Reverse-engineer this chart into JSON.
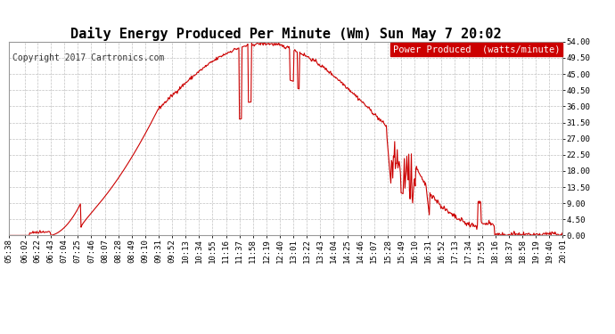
{
  "title": "Daily Energy Produced Per Minute (Wm) Sun May 7 20:02",
  "copyright_text": "Copyright 2017 Cartronics.com",
  "legend_text": "Power Produced  (watts/minute)",
  "legend_bg": "#cc0000",
  "legend_fg": "#ffffff",
  "line_color": "#cc0000",
  "bg_color": "#ffffff",
  "grid_color": "#bbbbbb",
  "ylim": [
    0,
    54.0
  ],
  "yticks": [
    0.0,
    4.5,
    9.0,
    13.5,
    18.0,
    22.5,
    27.0,
    31.5,
    36.0,
    40.5,
    45.0,
    49.5,
    54.0
  ],
  "ytick_labels": [
    "0.00",
    "4.50",
    "9.00",
    "13.50",
    "18.00",
    "22.50",
    "27.00",
    "31.50",
    "36.00",
    "40.50",
    "45.00",
    "49.50",
    "54.00"
  ],
  "title_fontsize": 11,
  "copyright_fontsize": 7,
  "tick_fontsize": 6.5,
  "legend_fontsize": 7.5,
  "axis_bg": "#ffffff",
  "xtick_labels": [
    "05:38",
    "06:02",
    "06:22",
    "06:43",
    "07:04",
    "07:25",
    "07:46",
    "08:07",
    "08:28",
    "08:49",
    "09:10",
    "09:31",
    "09:52",
    "10:13",
    "10:34",
    "10:55",
    "11:16",
    "11:37",
    "11:58",
    "12:19",
    "12:40",
    "13:01",
    "13:22",
    "13:43",
    "14:04",
    "14:25",
    "14:46",
    "15:07",
    "15:28",
    "15:49",
    "16:10",
    "16:31",
    "16:52",
    "17:13",
    "17:34",
    "17:55",
    "18:16",
    "18:37",
    "18:58",
    "19:19",
    "19:40",
    "20:01"
  ]
}
